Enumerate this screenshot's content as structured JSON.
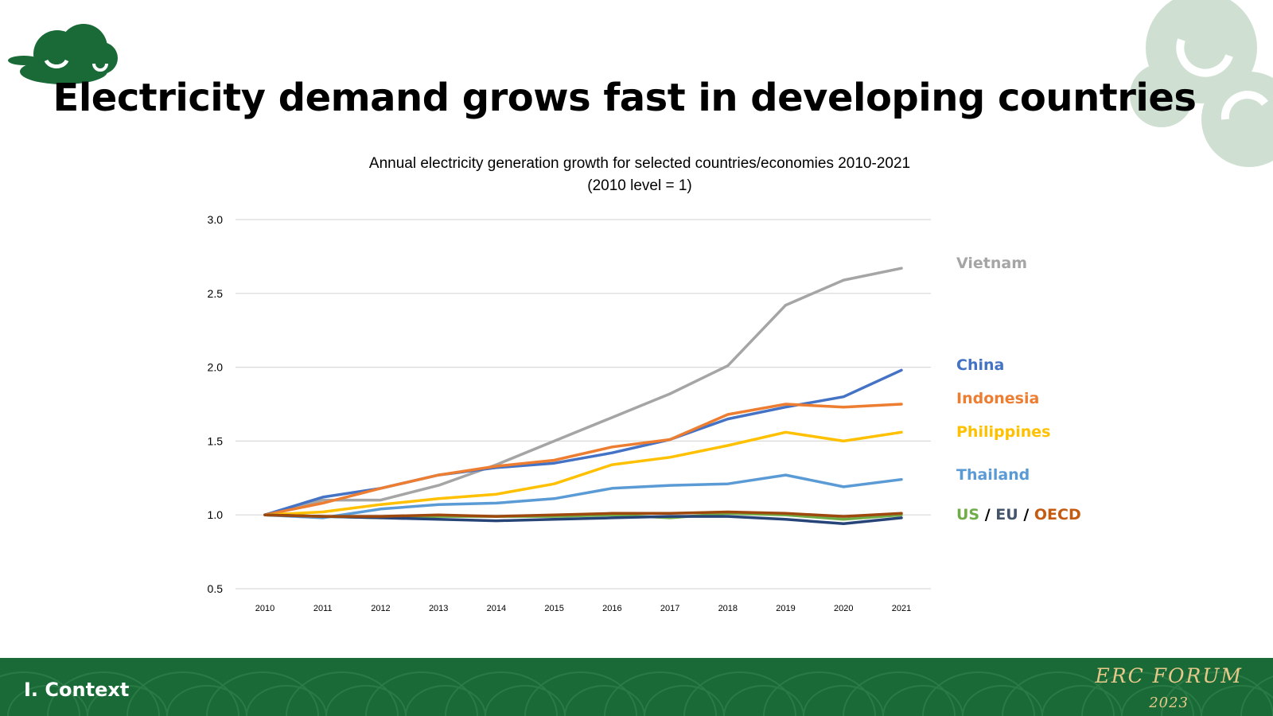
{
  "slide": {
    "title": "Electricity demand grows fast in developing countries",
    "section": "I.  Context",
    "brand": "ERC FORUM",
    "year": "2023",
    "colors": {
      "footer": "#1a6a37",
      "logo": "#1a6a37",
      "brand_text": "#e9c98a"
    }
  },
  "chart_data": {
    "type": "line",
    "title": "Annual electricity generation growth for selected countries/economies 2010-2021",
    "subtitle": "(2010 level = 1)",
    "xlabel": "",
    "ylabel": "",
    "x": [
      "2010",
      "2011",
      "2012",
      "2013",
      "2014",
      "2015",
      "2016",
      "2017",
      "2018",
      "2019",
      "2020",
      "2021"
    ],
    "ylim": [
      0.5,
      3.0
    ],
    "yticks": [
      "0.5",
      "1.0",
      "1.5",
      "2.0",
      "2.5",
      "3.0"
    ],
    "grid": true,
    "legend": "right",
    "series": [
      {
        "name": "Vietnam",
        "color": "#a5a5a5",
        "values": [
          1.0,
          1.1,
          1.1,
          1.2,
          1.34,
          1.5,
          1.66,
          1.82,
          2.01,
          2.42,
          2.59,
          2.67
        ]
      },
      {
        "name": "China",
        "color": "#4472c4",
        "values": [
          1.0,
          1.12,
          1.18,
          1.27,
          1.32,
          1.35,
          1.42,
          1.51,
          1.65,
          1.73,
          1.8,
          1.98
        ]
      },
      {
        "name": "Indonesia",
        "color": "#ed7d31",
        "values": [
          1.0,
          1.08,
          1.18,
          1.27,
          1.33,
          1.37,
          1.46,
          1.51,
          1.68,
          1.75,
          1.73,
          1.75
        ]
      },
      {
        "name": "Philippines",
        "color": "#ffc000",
        "values": [
          1.0,
          1.02,
          1.07,
          1.11,
          1.14,
          1.21,
          1.34,
          1.39,
          1.47,
          1.56,
          1.5,
          1.56
        ]
      },
      {
        "name": "Thailand",
        "color": "#5b9bd5",
        "values": [
          1.0,
          0.98,
          1.04,
          1.07,
          1.08,
          1.11,
          1.18,
          1.2,
          1.21,
          1.27,
          1.19,
          1.24
        ]
      },
      {
        "name": "US",
        "color": "#70ad47",
        "values": [
          1.0,
          0.99,
          0.98,
          0.99,
          0.99,
          0.99,
          1.0,
          0.98,
          1.01,
          1.0,
          0.97,
          1.0
        ]
      },
      {
        "name": "EU",
        "color": "#264478",
        "values": [
          1.0,
          0.99,
          0.98,
          0.97,
          0.96,
          0.97,
          0.98,
          0.99,
          0.99,
          0.97,
          0.94,
          0.98
        ]
      },
      {
        "name": "OECD",
        "color": "#9e480e",
        "values": [
          1.0,
          0.99,
          0.99,
          1.0,
          0.99,
          1.0,
          1.01,
          1.01,
          1.02,
          1.01,
          0.99,
          1.01
        ]
      }
    ],
    "legend_labels": [
      {
        "text": "Vietnam",
        "color": "#a5a5a5"
      },
      {
        "text": "China",
        "color": "#4472c4"
      },
      {
        "text": "Indonesia",
        "color": "#ed7d31"
      },
      {
        "text": "Philippines",
        "color": "#ffc000"
      },
      {
        "text": "Thailand",
        "color": "#5b9bd5"
      }
    ],
    "legend_group": [
      {
        "text": "US",
        "color": "#70ad47"
      },
      {
        "text": " / ",
        "color": "#000000"
      },
      {
        "text": "EU",
        "color": "#44546a"
      },
      {
        "text": " / ",
        "color": "#000000"
      },
      {
        "text": "OECD",
        "color": "#c55a11"
      }
    ]
  }
}
